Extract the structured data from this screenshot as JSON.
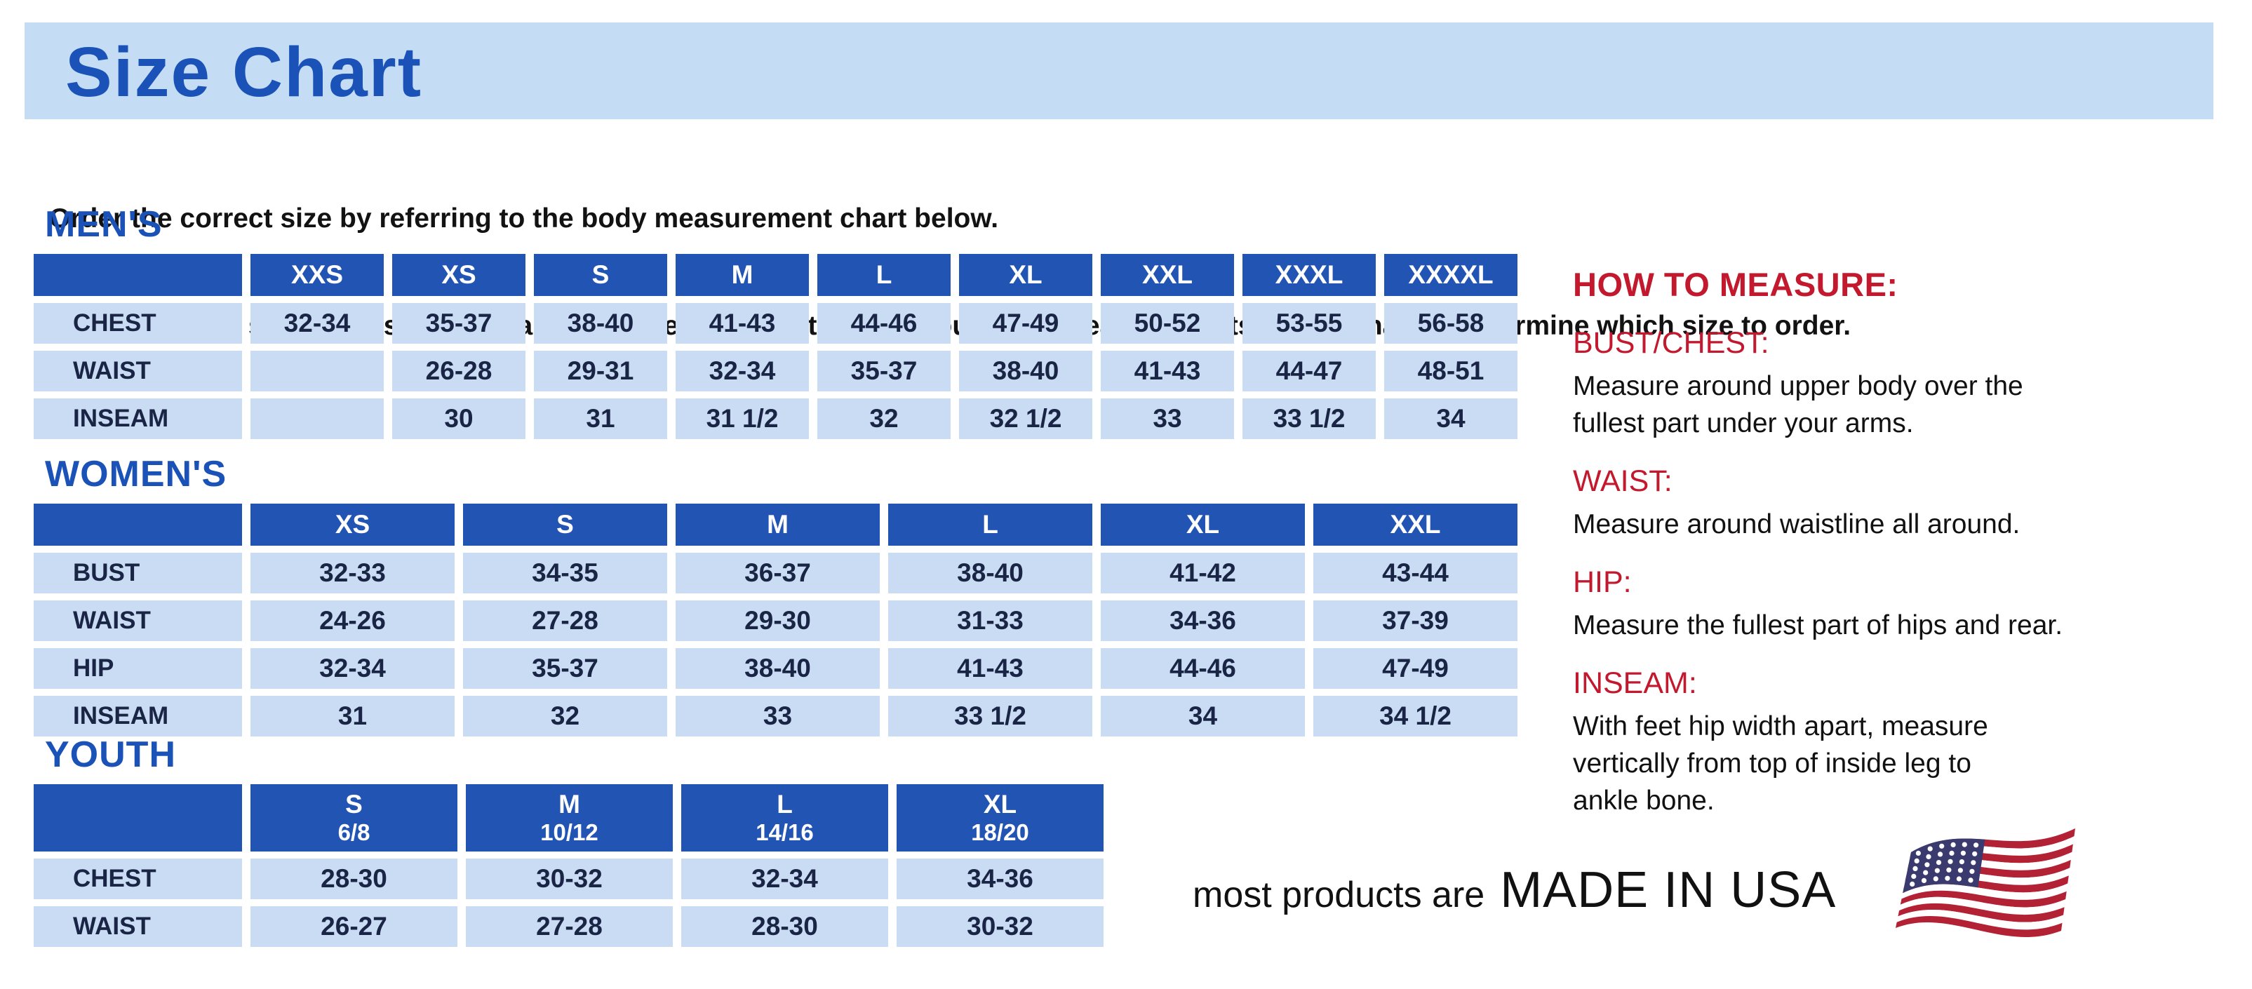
{
  "page": {
    "title": "Size Chart",
    "intro_line1": "Order the correct size by referring to the body measurement chart below.",
    "intro_line2": "Measurements shown on size chart are body measurements.  Find your body measurements on the chart to determine which size to order."
  },
  "colors": {
    "header_blue": "#2254B4",
    "cell_blue": "#C9DCF4",
    "title_blue": "#1A52B8",
    "banner_blue": "#C5DCF5",
    "heading_red": "#C2192E",
    "flag_red": "#B22234",
    "flag_blue": "#3A3A6E"
  },
  "tables": {
    "mens": {
      "heading": "MEN'S",
      "columns": [
        "XXS",
        "XS",
        "S",
        "M",
        "L",
        "XL",
        "XXL",
        "XXXL",
        "XXXXL"
      ],
      "rows": [
        {
          "label": "CHEST",
          "values": [
            "32-34",
            "35-37",
            "38-40",
            "41-43",
            "44-46",
            "47-49",
            "50-52",
            "53-55",
            "56-58"
          ]
        },
        {
          "label": "WAIST",
          "values": [
            "",
            "26-28",
            "29-31",
            "32-34",
            "35-37",
            "38-40",
            "41-43",
            "44-47",
            "48-51"
          ]
        },
        {
          "label": "INSEAM",
          "values": [
            "",
            "30",
            "31",
            "31 1/2",
            "32",
            "32 1/2",
            "33",
            "33 1/2",
            "34"
          ]
        }
      ]
    },
    "womens": {
      "heading": "WOMEN'S",
      "columns": [
        "XS",
        "S",
        "M",
        "L",
        "XL",
        "XXL"
      ],
      "rows": [
        {
          "label": "BUST",
          "values": [
            "32-33",
            "34-35",
            "36-37",
            "38-40",
            "41-42",
            "43-44"
          ]
        },
        {
          "label": "WAIST",
          "values": [
            "24-26",
            "27-28",
            "29-30",
            "31-33",
            "34-36",
            "37-39"
          ]
        },
        {
          "label": "HIP",
          "values": [
            "32-34",
            "35-37",
            "38-40",
            "41-43",
            "44-46",
            "47-49"
          ]
        },
        {
          "label": "INSEAM",
          "values": [
            "31",
            "32",
            "33",
            "33 1/2",
            "34",
            "34 1/2"
          ]
        }
      ]
    },
    "youth": {
      "heading": "YOUTH",
      "columns": [
        {
          "size": "S",
          "range": "6/8"
        },
        {
          "size": "M",
          "range": "10/12"
        },
        {
          "size": "L",
          "range": "14/16"
        },
        {
          "size": "XL",
          "range": "18/20"
        }
      ],
      "rows": [
        {
          "label": "CHEST",
          "values": [
            "28-30",
            "30-32",
            "32-34",
            "34-36"
          ]
        },
        {
          "label": "WAIST",
          "values": [
            "26-27",
            "27-28",
            "28-30",
            "30-32"
          ]
        }
      ]
    }
  },
  "how_to_measure": {
    "heading": "HOW TO MEASURE:",
    "items": [
      {
        "label": "BUST/CHEST:",
        "lines": [
          "Measure around upper body over the",
          "fullest part under your arms."
        ]
      },
      {
        "label": "WAIST:",
        "lines": [
          "Measure around waistline all around."
        ]
      },
      {
        "label": "HIP:",
        "lines": [
          "Measure the fullest part of hips and rear."
        ]
      },
      {
        "label": "INSEAM:",
        "lines": [
          "With feet hip width apart, measure",
          "vertically from top of inside leg to",
          "ankle bone."
        ]
      }
    ]
  },
  "footer": {
    "prefix": "most products are",
    "emphasis": "MADE IN USA"
  }
}
